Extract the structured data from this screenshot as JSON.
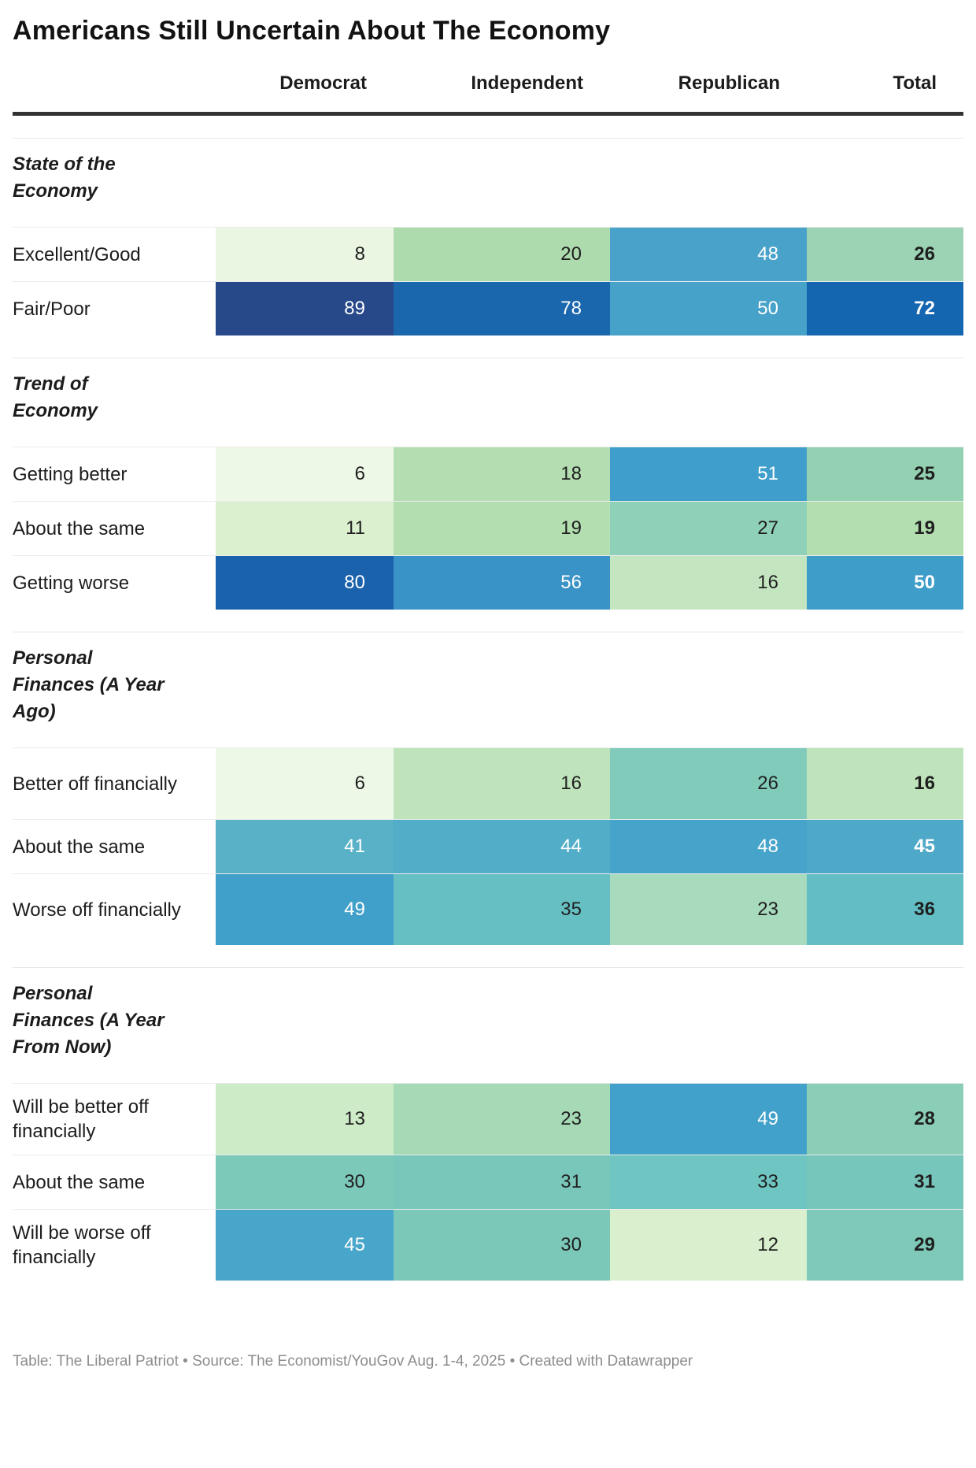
{
  "title": "Americans Still Uncertain About The Economy",
  "footer": "Table: The Liberal Patriot • Source: The Economist/YouGov Aug. 1-4, 2025 • Created with Datawrapper",
  "table": {
    "columns": [
      "Democrat",
      "Independent",
      "Republican",
      "Total"
    ],
    "sections": [
      {
        "header": "State of the Economy",
        "rows": [
          {
            "label": "Excellent/Good",
            "tall": false,
            "cells": [
              {
                "v": "8",
                "bg": "#ebf6e2",
                "fg": "#1f1f1f"
              },
              {
                "v": "20",
                "bg": "#addbad",
                "fg": "#1f1f1f"
              },
              {
                "v": "48",
                "bg": "#48a2c9",
                "fg": "#ffffff"
              },
              {
                "v": "26",
                "bg": "#9bd3b4",
                "fg": "#1f1f1f"
              }
            ]
          },
          {
            "label": "Fair/Poor",
            "tall": false,
            "cells": [
              {
                "v": "89",
                "bg": "#27498a",
                "fg": "#ffffff"
              },
              {
                "v": "78",
                "bg": "#1b67ae",
                "fg": "#ffffff"
              },
              {
                "v": "50",
                "bg": "#46a2c8",
                "fg": "#ffffff"
              },
              {
                "v": "72",
                "bg": "#1566b0",
                "fg": "#ffffff"
              }
            ]
          }
        ]
      },
      {
        "header": "Trend of Economy",
        "rows": [
          {
            "label": "Getting better",
            "tall": false,
            "cells": [
              {
                "v": "6",
                "bg": "#eef8e7",
                "fg": "#1f1f1f"
              },
              {
                "v": "18",
                "bg": "#b4deb1",
                "fg": "#1f1f1f"
              },
              {
                "v": "51",
                "bg": "#3f9ecb",
                "fg": "#ffffff"
              },
              {
                "v": "25",
                "bg": "#94d1b3",
                "fg": "#1f1f1f"
              }
            ]
          },
          {
            "label": "About the same",
            "tall": false,
            "cells": [
              {
                "v": "11",
                "bg": "#daf0cf",
                "fg": "#1f1f1f"
              },
              {
                "v": "19",
                "bg": "#b2deb0",
                "fg": "#1f1f1f"
              },
              {
                "v": "27",
                "bg": "#8fd0b8",
                "fg": "#1f1f1f"
              },
              {
                "v": "19",
                "bg": "#b2deb0",
                "fg": "#1f1f1f"
              }
            ]
          },
          {
            "label": "Getting worse",
            "tall": false,
            "cells": [
              {
                "v": "80",
                "bg": "#1b62ad",
                "fg": "#ffffff"
              },
              {
                "v": "56",
                "bg": "#3a93c6",
                "fg": "#ffffff"
              },
              {
                "v": "16",
                "bg": "#c3e6c0",
                "fg": "#1f1f1f"
              },
              {
                "v": "50",
                "bg": "#3f9dc9",
                "fg": "#ffffff"
              }
            ]
          }
        ]
      },
      {
        "header": "Personal Finances (A Year Ago)",
        "rows": [
          {
            "label": "Better off financially",
            "tall": true,
            "cells": [
              {
                "v": "6",
                "bg": "#eef8e7",
                "fg": "#1f1f1f"
              },
              {
                "v": "16",
                "bg": "#bfe4bc",
                "fg": "#1f1f1f"
              },
              {
                "v": "26",
                "bg": "#81cbbb",
                "fg": "#1f1f1f"
              },
              {
                "v": "16",
                "bg": "#bfe4bc",
                "fg": "#1f1f1f"
              }
            ]
          },
          {
            "label": "About the same",
            "tall": false,
            "cells": [
              {
                "v": "41",
                "bg": "#58b1c6",
                "fg": "#ffffff"
              },
              {
                "v": "44",
                "bg": "#52aec8",
                "fg": "#ffffff"
              },
              {
                "v": "48",
                "bg": "#46a3c9",
                "fg": "#ffffff"
              },
              {
                "v": "45",
                "bg": "#4ea9c8",
                "fg": "#ffffff"
              }
            ]
          },
          {
            "label": "Worse off financially",
            "tall": true,
            "cells": [
              {
                "v": "49",
                "bg": "#41a0c9",
                "fg": "#ffffff"
              },
              {
                "v": "35",
                "bg": "#66bfc2",
                "fg": "#1f1f1f"
              },
              {
                "v": "23",
                "bg": "#a8dabd",
                "fg": "#1f1f1f"
              },
              {
                "v": "36",
                "bg": "#62bdc4",
                "fg": "#1f1f1f"
              }
            ]
          }
        ]
      },
      {
        "header": "Personal Finances (A Year From Now)",
        "rows": [
          {
            "label": "Will be better off financially",
            "tall": true,
            "cells": [
              {
                "v": "13",
                "bg": "#cdebc6",
                "fg": "#1f1f1f"
              },
              {
                "v": "23",
                "bg": "#a6d9b5",
                "fg": "#1f1f1f"
              },
              {
                "v": "49",
                "bg": "#42a1ca",
                "fg": "#ffffff"
              },
              {
                "v": "28",
                "bg": "#8bceb7",
                "fg": "#1f1f1f"
              }
            ]
          },
          {
            "label": "About the same",
            "tall": false,
            "cells": [
              {
                "v": "30",
                "bg": "#7cc8b9",
                "fg": "#1f1f1f"
              },
              {
                "v": "31",
                "bg": "#79c7ba",
                "fg": "#1f1f1f"
              },
              {
                "v": "33",
                "bg": "#6ec5c1",
                "fg": "#1f1f1f"
              },
              {
                "v": "31",
                "bg": "#77c6bb",
                "fg": "#1f1f1f"
              }
            ]
          },
          {
            "label": "Will be worse off financially",
            "tall": true,
            "cells": [
              {
                "v": "45",
                "bg": "#49a6cb",
                "fg": "#ffffff"
              },
              {
                "v": "30",
                "bg": "#7bc8b9",
                "fg": "#1f1f1f"
              },
              {
                "v": "12",
                "bg": "#d9efce",
                "fg": "#1f1f1f"
              },
              {
                "v": "29",
                "bg": "#7ec9b8",
                "fg": "#1f1f1f"
              }
            ]
          }
        ]
      }
    ]
  },
  "chart_data": {
    "type": "heatmap",
    "title": "Americans Still Uncertain About The Economy",
    "columns": [
      "Democrat",
      "Independent",
      "Republican",
      "Total"
    ],
    "sections": [
      {
        "name": "State of the Economy",
        "rows": [
          {
            "label": "Excellent/Good",
            "values": [
              8,
              20,
              48,
              26
            ]
          },
          {
            "label": "Fair/Poor",
            "values": [
              89,
              78,
              50,
              72
            ]
          }
        ]
      },
      {
        "name": "Trend of Economy",
        "rows": [
          {
            "label": "Getting better",
            "values": [
              6,
              18,
              51,
              25
            ]
          },
          {
            "label": "About the same",
            "values": [
              11,
              19,
              27,
              19
            ]
          },
          {
            "label": "Getting worse",
            "values": [
              80,
              56,
              16,
              50
            ]
          }
        ]
      },
      {
        "name": "Personal Finances (A Year Ago)",
        "rows": [
          {
            "label": "Better off financially",
            "values": [
              6,
              16,
              26,
              16
            ]
          },
          {
            "label": "About the same",
            "values": [
              41,
              44,
              48,
              45
            ]
          },
          {
            "label": "Worse off financially",
            "values": [
              49,
              35,
              23,
              36
            ]
          }
        ]
      },
      {
        "name": "Personal Finances (A Year From Now)",
        "rows": [
          {
            "label": "Will be better off financially",
            "values": [
              13,
              23,
              49,
              28
            ]
          },
          {
            "label": "About the same",
            "values": [
              30,
              31,
              33,
              31
            ]
          },
          {
            "label": "Will be worse off financially",
            "values": [
              45,
              30,
              12,
              29
            ]
          }
        ]
      }
    ],
    "legend_position": "none",
    "grid": false,
    "value_range": [
      0,
      100
    ],
    "color_scale": {
      "low": "#eef8e7",
      "mid": "#7cc8b9",
      "high": "#1566b0",
      "note": "light green (low) through teal to dark blue (high)"
    }
  }
}
